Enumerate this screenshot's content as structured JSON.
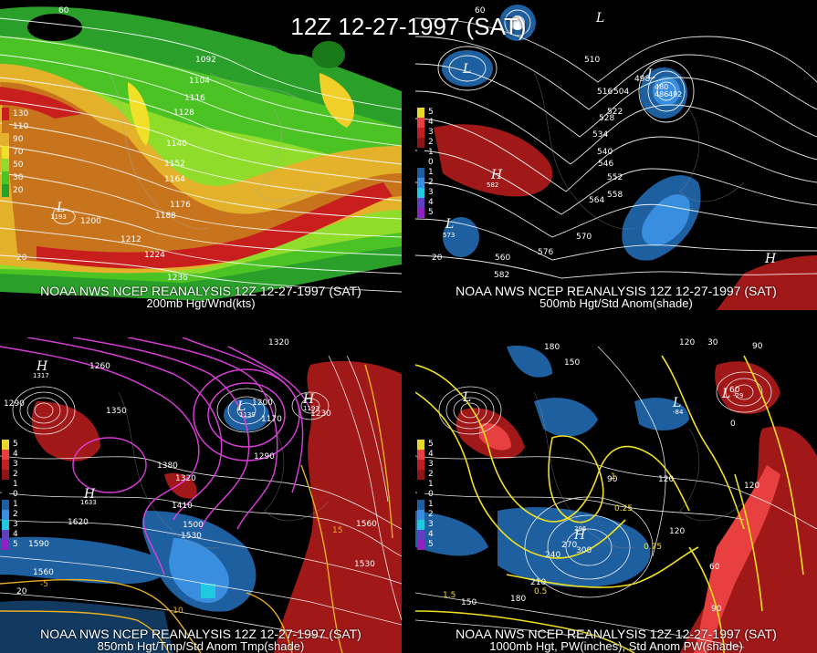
{
  "title": "12Z 12-27-1997 (SAT)",
  "panels": [
    {
      "caption1": "NOAA NWS NCEP REANALYSIS 12Z 12-27-1997 (SAT)",
      "caption2": "200mb Hgt/Wnd(kts)",
      "legend": [
        "130",
        "110",
        "90",
        "70",
        "50",
        "30",
        "20"
      ],
      "contour_labels": [
        "1092",
        "1104",
        "1116",
        "1128",
        "1140",
        "1152",
        "1164",
        "1176",
        "1188",
        "1200",
        "1212",
        "1224",
        "1236"
      ],
      "extra_labels": [
        "60",
        "20",
        "1193"
      ],
      "systems": [
        "L"
      ]
    },
    {
      "caption1": "NOAA NWS NCEP REANALYSIS 12Z 12-27-1997 (SAT)",
      "caption2": "500mb Hgt/Std Anom(shade)",
      "legend": [
        "5",
        "4",
        "3",
        "2",
        "1",
        "0",
        "1",
        "2",
        "3",
        "4",
        "5"
      ],
      "contour_labels": [
        "510",
        "498",
        "516",
        "504",
        "522",
        "528",
        "534",
        "540",
        "546",
        "552",
        "558",
        "564",
        "570",
        "576",
        "582"
      ],
      "extra_labels": [
        "480",
        "486",
        "492",
        "582",
        "573",
        "560",
        "60",
        "20"
      ],
      "systems": [
        "L",
        "L",
        "H",
        "L",
        "H",
        "L"
      ]
    },
    {
      "caption1": "NOAA NWS NCEP REANALYSIS 12Z 12-27-1997 (SAT)",
      "caption2": "850mb Hgt/Tmp/Std Anom Tmp(shade)",
      "legend": [
        "5",
        "4",
        "3",
        "2",
        "1",
        "0",
        "1",
        "2",
        "3",
        "4",
        "5"
      ],
      "contour_labels": [
        "1320",
        "1260",
        "1290",
        "1350",
        "1200",
        "1170",
        "1230",
        "1290",
        "1380",
        "1320",
        "1410",
        "1500",
        "1530",
        "1560",
        "1590",
        "1620",
        "1560",
        "1530",
        "-5",
        "-10",
        "15",
        "20"
      ],
      "extra_labels": [
        "1317",
        "1139",
        "1633",
        "1193"
      ],
      "systems": [
        "H",
        "H",
        "L",
        "H"
      ]
    },
    {
      "caption1": "NOAA NWS NCEP REANALYSIS 12Z 12-27-1997 (SAT)",
      "caption2": "1000mb Hgt, PW(inches), Std Anom PW(shade)",
      "legend": [
        "5",
        "4",
        "3",
        "2",
        "1",
        "0",
        "1",
        "2",
        "3",
        "4",
        "5"
      ],
      "contour_labels": [
        "180",
        "150",
        "120",
        "30",
        "90",
        "60",
        "0",
        "120",
        "90",
        "120",
        "150",
        "180",
        "210",
        "240",
        "270",
        "300",
        "120",
        "60",
        "90",
        "0.5",
        "0.25",
        "0.75",
        "1",
        "1.5"
      ],
      "extra_labels": [
        "296",
        "-84",
        "-29"
      ],
      "systems": [
        "L",
        "L",
        "H",
        "L"
      ]
    }
  ]
}
